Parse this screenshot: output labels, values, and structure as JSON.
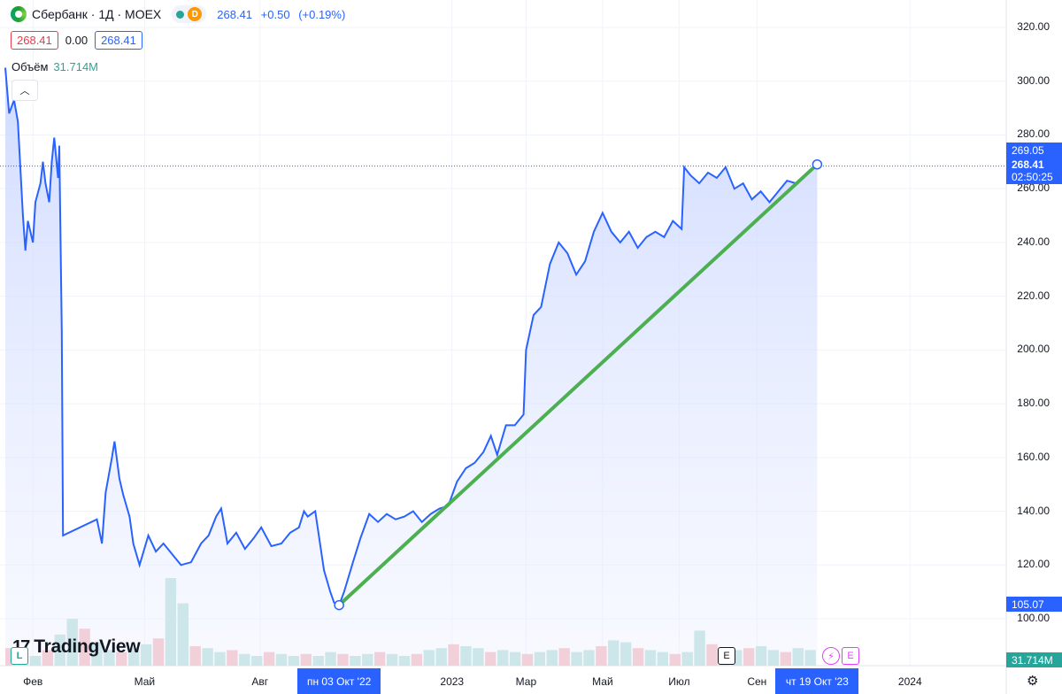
{
  "header": {
    "symbol": "Сбербанк · 1Д · MOEX",
    "interval_badge": "D",
    "last": "268.41",
    "change": "+0.50",
    "change_pct": "(+0.19%)",
    "bid": "268.41",
    "spread": "0.00",
    "ask": "268.41"
  },
  "volume": {
    "label": "Объём",
    "value": "31.714M"
  },
  "branding": {
    "name": "TradingView"
  },
  "price_tags": {
    "high": "269.05",
    "last": "268.41",
    "countdown": "02:50:25",
    "low": "105.07",
    "volume": "31.714M"
  },
  "events": {
    "earnings": "E",
    "dividend": "E",
    "split_label": "L"
  },
  "colors": {
    "price_line": "#2962ff",
    "trend_line": "#4caf50",
    "area": "#dbe4ff",
    "up": "#26a69a",
    "down": "#f23645"
  },
  "chart_data": {
    "type": "area",
    "title": "Сбербанк · 1Д · MOEX",
    "ylim": [
      95,
      325
    ],
    "y_ticks": [
      100,
      120,
      140,
      160,
      180,
      200,
      220,
      240,
      260,
      280,
      300,
      320
    ],
    "x_ticks": [
      {
        "label": "Фев",
        "date": "2022-02-01"
      },
      {
        "label": "Май",
        "date": "2022-05-01"
      },
      {
        "label": "Авг",
        "date": "2022-08-01"
      },
      {
        "label": "2023",
        "date": "2023-01-01"
      },
      {
        "label": "Мар",
        "date": "2023-03-01"
      },
      {
        "label": "Май",
        "date": "2023-05-01"
      },
      {
        "label": "Июл",
        "date": "2023-07-01"
      },
      {
        "label": "Сен",
        "date": "2023-09-01"
      },
      {
        "label": "2024",
        "date": "2024-01-01"
      }
    ],
    "crosshair_labels": [
      {
        "label": "пн 03 Окт '22",
        "date": "2022-10-03"
      },
      {
        "label": "чт 19 Окт '23",
        "date": "2023-10-19"
      }
    ],
    "x_range": [
      "2022-01-10",
      "2024-02-10"
    ],
    "trend_line": {
      "start": {
        "date": "2022-10-03",
        "value": 105.07
      },
      "end": {
        "date": "2023-10-19",
        "value": 269.05
      }
    },
    "series": [
      {
        "values": [
          [
            "2022-01-10",
            305
          ],
          [
            "2022-01-13",
            288
          ],
          [
            "2022-01-17",
            293
          ],
          [
            "2022-01-20",
            285
          ],
          [
            "2022-01-24",
            250
          ],
          [
            "2022-01-26",
            237
          ],
          [
            "2022-01-28",
            248
          ],
          [
            "2022-02-01",
            240
          ],
          [
            "2022-02-03",
            255
          ],
          [
            "2022-02-07",
            262
          ],
          [
            "2022-02-09",
            270
          ],
          [
            "2022-02-11",
            262
          ],
          [
            "2022-02-14",
            255
          ],
          [
            "2022-02-16",
            270
          ],
          [
            "2022-02-18",
            279
          ],
          [
            "2022-02-21",
            264
          ],
          [
            "2022-02-22",
            276
          ],
          [
            "2022-02-24",
            207
          ],
          [
            "2022-02-25",
            131
          ],
          [
            "2022-03-24",
            137
          ],
          [
            "2022-03-28",
            128
          ],
          [
            "2022-03-31",
            147
          ],
          [
            "2022-04-05",
            160
          ],
          [
            "2022-04-07",
            166
          ],
          [
            "2022-04-11",
            152
          ],
          [
            "2022-04-14",
            146
          ],
          [
            "2022-04-19",
            138
          ],
          [
            "2022-04-22",
            128
          ],
          [
            "2022-04-27",
            120
          ],
          [
            "2022-05-04",
            131
          ],
          [
            "2022-05-10",
            125
          ],
          [
            "2022-05-16",
            128
          ],
          [
            "2022-05-23",
            124
          ],
          [
            "2022-05-30",
            120
          ],
          [
            "2022-06-07",
            121
          ],
          [
            "2022-06-15",
            128
          ],
          [
            "2022-06-21",
            131
          ],
          [
            "2022-06-27",
            138
          ],
          [
            "2022-07-01",
            141
          ],
          [
            "2022-07-06",
            128
          ],
          [
            "2022-07-13",
            132
          ],
          [
            "2022-07-20",
            126
          ],
          [
            "2022-07-27",
            130
          ],
          [
            "2022-08-02",
            134
          ],
          [
            "2022-08-10",
            127
          ],
          [
            "2022-08-18",
            128
          ],
          [
            "2022-08-25",
            132
          ],
          [
            "2022-09-01",
            134
          ],
          [
            "2022-09-05",
            140
          ],
          [
            "2022-09-08",
            138
          ],
          [
            "2022-09-14",
            140
          ],
          [
            "2022-09-21",
            118
          ],
          [
            "2022-09-26",
            110
          ],
          [
            "2022-09-29",
            106
          ],
          [
            "2022-10-03",
            105.07
          ],
          [
            "2022-10-07",
            110
          ],
          [
            "2022-10-14",
            121
          ],
          [
            "2022-10-20",
            130
          ],
          [
            "2022-10-27",
            139
          ],
          [
            "2022-11-03",
            136
          ],
          [
            "2022-11-10",
            139
          ],
          [
            "2022-11-17",
            137
          ],
          [
            "2022-11-24",
            138
          ],
          [
            "2022-12-01",
            140
          ],
          [
            "2022-12-08",
            136
          ],
          [
            "2022-12-15",
            139
          ],
          [
            "2022-12-22",
            141
          ],
          [
            "2022-12-29",
            142
          ],
          [
            "2023-01-05",
            151
          ],
          [
            "2023-01-12",
            156
          ],
          [
            "2023-01-19",
            158
          ],
          [
            "2023-01-26",
            162
          ],
          [
            "2023-02-01",
            168
          ],
          [
            "2023-02-06",
            161
          ],
          [
            "2023-02-13",
            172
          ],
          [
            "2023-02-20",
            172
          ],
          [
            "2023-02-27",
            176
          ],
          [
            "2023-03-01",
            200
          ],
          [
            "2023-03-07",
            213
          ],
          [
            "2023-03-13",
            216
          ],
          [
            "2023-03-20",
            232
          ],
          [
            "2023-03-27",
            240
          ],
          [
            "2023-04-03",
            236
          ],
          [
            "2023-04-10",
            228
          ],
          [
            "2023-04-17",
            233
          ],
          [
            "2023-04-24",
            244
          ],
          [
            "2023-05-01",
            251
          ],
          [
            "2023-05-08",
            244
          ],
          [
            "2023-05-15",
            240
          ],
          [
            "2023-05-22",
            244
          ],
          [
            "2023-05-29",
            238
          ],
          [
            "2023-06-05",
            242
          ],
          [
            "2023-06-12",
            244
          ],
          [
            "2023-06-19",
            242
          ],
          [
            "2023-06-26",
            248
          ],
          [
            "2023-07-03",
            245
          ],
          [
            "2023-07-05",
            268
          ],
          [
            "2023-07-10",
            265
          ],
          [
            "2023-07-17",
            262
          ],
          [
            "2023-07-24",
            266
          ],
          [
            "2023-07-31",
            264
          ],
          [
            "2023-08-07",
            268
          ],
          [
            "2023-08-14",
            260
          ],
          [
            "2023-08-21",
            262
          ],
          [
            "2023-08-28",
            256
          ],
          [
            "2023-09-04",
            259
          ],
          [
            "2023-09-11",
            255
          ],
          [
            "2023-09-18",
            259
          ],
          [
            "2023-09-25",
            263
          ],
          [
            "2023-10-02",
            262
          ],
          [
            "2023-10-09",
            265
          ],
          [
            "2023-10-16",
            268
          ],
          [
            "2023-10-19",
            268.41
          ]
        ]
      }
    ],
    "volume_bars": [
      0.9,
      0.6,
      0.5,
      0.8,
      1.6,
      2.4,
      1.9,
      1.2,
      0.8,
      0.7,
      0.9,
      1.1,
      1.4,
      4.5,
      3.2,
      1.0,
      0.9,
      0.7,
      0.8,
      0.6,
      0.5,
      0.7,
      0.6,
      0.5,
      0.6,
      0.5,
      0.7,
      0.6,
      0.5,
      0.6,
      0.7,
      0.6,
      0.5,
      0.6,
      0.8,
      0.9,
      1.1,
      1.0,
      0.9,
      0.7,
      0.8,
      0.7,
      0.6,
      0.7,
      0.8,
      0.9,
      0.7,
      0.8,
      1.0,
      1.3,
      1.2,
      0.9,
      0.8,
      0.7,
      0.6,
      0.7,
      1.8,
      1.1,
      0.9,
      0.8,
      0.9,
      1.0,
      0.8,
      0.7,
      0.9,
      0.8
    ],
    "ylabel": ""
  }
}
